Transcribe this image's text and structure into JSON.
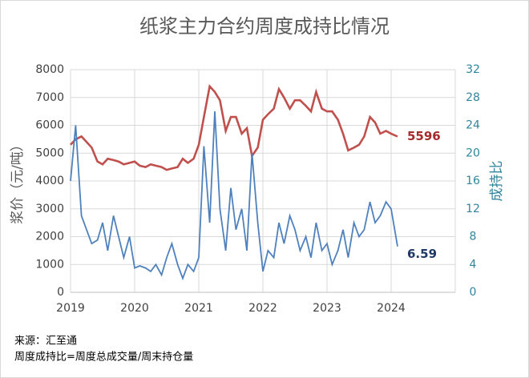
{
  "chart_data": {
    "type": "line",
    "title": "纸浆主力合约周度成持比情况",
    "ylabel": "浆价（元/吨）",
    "y2label": "成持比",
    "notes": [
      "来源：汇至通",
      "周度成持比=周度总成交量/周末持仓量"
    ],
    "x": [
      2019.0,
      2019.08,
      2019.17,
      2019.25,
      2019.33,
      2019.42,
      2019.5,
      2019.58,
      2019.67,
      2019.75,
      2019.83,
      2019.92,
      2020.0,
      2020.08,
      2020.17,
      2020.25,
      2020.33,
      2020.42,
      2020.5,
      2020.58,
      2020.67,
      2020.75,
      2020.83,
      2020.92,
      2021.0,
      2021.08,
      2021.17,
      2021.25,
      2021.33,
      2021.42,
      2021.5,
      2021.58,
      2021.67,
      2021.75,
      2021.83,
      2021.92,
      2022.0,
      2022.08,
      2022.17,
      2022.25,
      2022.33,
      2022.42,
      2022.5,
      2022.58,
      2022.67,
      2022.75,
      2022.83,
      2022.92,
      2023.0,
      2023.08,
      2023.17,
      2023.25,
      2023.33,
      2023.42,
      2023.5,
      2023.58,
      2023.67,
      2023.75,
      2023.83,
      2023.92,
      2024.0,
      2024.1
    ],
    "xlim": [
      2019,
      2025
    ],
    "xticks": [
      2019,
      2020,
      2021,
      2022,
      2023,
      2024
    ],
    "ylim": [
      0,
      8000
    ],
    "yticks": [
      0,
      1000,
      2000,
      3000,
      4000,
      5000,
      6000,
      7000,
      8000
    ],
    "y2lim": [
      0,
      32
    ],
    "y2ticks": [
      0,
      4,
      8,
      12,
      16,
      20,
      24,
      28,
      32
    ],
    "grid": true,
    "series": [
      {
        "name": "浆价",
        "color": "#c0504d",
        "values": [
          5300,
          5500,
          5600,
          5400,
          5200,
          4700,
          4600,
          4800,
          4750,
          4700,
          4600,
          4650,
          4700,
          4550,
          4500,
          4600,
          4550,
          4500,
          4400,
          4450,
          4500,
          4800,
          4650,
          4800,
          5300,
          6300,
          7400,
          7200,
          6900,
          5800,
          6300,
          6300,
          5700,
          5900,
          4900,
          5200,
          6200,
          6400,
          6600,
          7300,
          7000,
          6600,
          6900,
          6900,
          6700,
          6500,
          7200,
          6600,
          6500,
          6500,
          6200,
          5700,
          5100,
          5200,
          5300,
          5600,
          6300,
          6100,
          5700,
          5800,
          5700,
          5596
        ]
      },
      {
        "name": "成持比",
        "color": "#4f81bd",
        "axis": "y2",
        "values": [
          16,
          24,
          11,
          9,
          7,
          7.5,
          10,
          6,
          11,
          8,
          5,
          8,
          3.5,
          3.8,
          3.5,
          3,
          4,
          2.5,
          5,
          7,
          4,
          2,
          4,
          3,
          5,
          21,
          10,
          26,
          12,
          6,
          15,
          9,
          12,
          6,
          20,
          10,
          3,
          6,
          5,
          10,
          7,
          11,
          9,
          6,
          8,
          5,
          10,
          6,
          7,
          4,
          6,
          9,
          5,
          10,
          8,
          9,
          13,
          10,
          11,
          13,
          12,
          6.59
        ]
      }
    ]
  }
}
